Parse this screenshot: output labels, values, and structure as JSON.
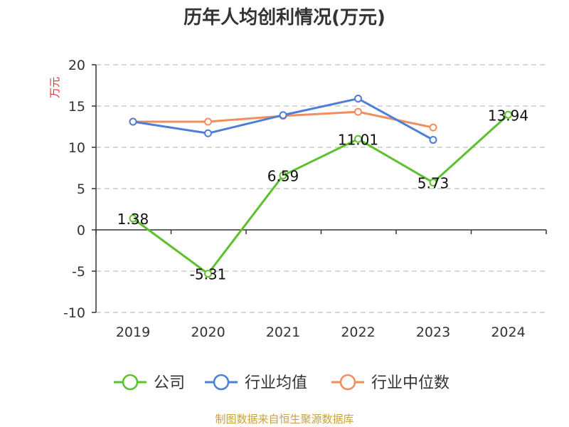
{
  "chart_data": {
    "type": "line",
    "title": "历年人均创利情况(万元)",
    "ylabel": "万元",
    "categories": [
      "2019",
      "2020",
      "2021",
      "2022",
      "2023",
      "2024"
    ],
    "ylim": [
      -10,
      20
    ],
    "yticks": [
      20,
      15,
      10,
      5,
      0,
      -5,
      -10
    ],
    "grid": true,
    "legend_position": "bottom",
    "series": [
      {
        "name": "公司",
        "color": "#5dc12e",
        "values": [
          1.38,
          -5.31,
          6.59,
          11.01,
          5.73,
          13.94
        ],
        "labels": [
          "1.38",
          "-5.31",
          "6.59",
          "11.01",
          "5.73",
          "13.94"
        ]
      },
      {
        "name": "行业均值",
        "color": "#4d7fd6",
        "values": [
          13.1,
          11.7,
          13.9,
          15.9,
          10.9,
          null
        ]
      },
      {
        "name": "行业中位数",
        "color": "#f28e5d",
        "values": [
          13.1,
          13.1,
          13.8,
          14.3,
          12.4,
          null
        ]
      }
    ]
  },
  "source": "制图数据来自恒生聚源数据库"
}
